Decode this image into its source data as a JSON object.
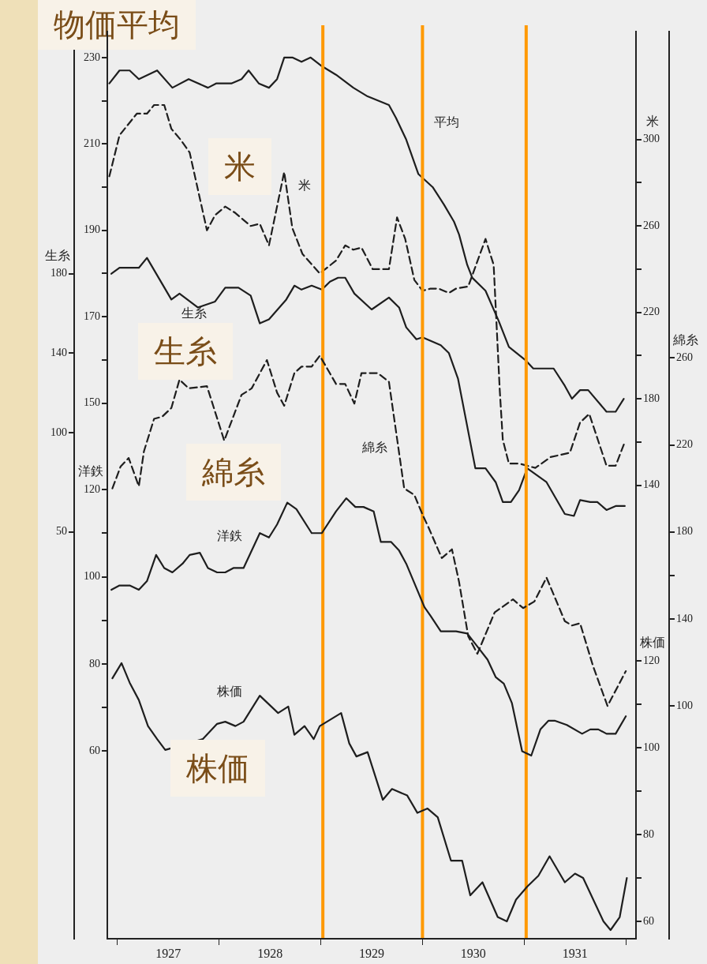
{
  "chart_data": [
    {
      "type": "line",
      "title": "物価平均",
      "annotations": [
        "米",
        "生糸"
      ],
      "xlim": [
        1926.9,
        1932.1
      ],
      "xticks": [
        {
          "value": 1927,
          "label": null
        },
        {
          "value": 1927.5,
          "label": "1927"
        },
        {
          "value": 1928,
          "label": null
        },
        {
          "value": 1928.5,
          "label": "1928"
        },
        {
          "value": 1929,
          "label": null
        },
        {
          "value": 1929.5,
          "label": "1929"
        },
        {
          "value": 1930,
          "label": null
        },
        {
          "value": 1930.5,
          "label": "1930"
        },
        {
          "value": 1931,
          "label": null
        },
        {
          "value": 1931.5,
          "label": "1931"
        },
        {
          "value": 1932,
          "label": null
        }
      ],
      "ylim": [
        26,
        236
      ],
      "yticks": [
        150,
        {
          "value": 160,
          "label": null
        },
        170,
        {
          "value": 180,
          "label": null
        },
        190,
        {
          "value": 200,
          "label": null
        },
        210,
        {
          "value": 220,
          "label": null
        },
        230
      ],
      "y2lim": [
        -70,
        350
      ],
      "y2label": "米",
      "y2ticks": [
        140,
        {
          "value": 160,
          "label": null
        },
        180,
        {
          "value": 200,
          "label": null
        },
        220,
        {
          "value": 240,
          "label": null
        },
        260,
        {
          "value": 280,
          "label": null
        },
        300
      ],
      "y3lim": [
        -155,
        302
      ],
      "y3label": "生糸",
      "y3ticks": [
        50,
        100,
        140,
        180
      ],
      "grid": false,
      "marker": "none",
      "ref_lines": [
        {
          "axis": "x",
          "value": 1929.02,
          "color": "#ff9900"
        },
        {
          "axis": "x",
          "value": 1930.0,
          "color": "#ff9900"
        },
        {
          "axis": "x",
          "value": 1931.02,
          "color": "#ff9900"
        }
      ],
      "series": [
        {
          "name": "平均",
          "color": "#1e1e1e",
          "axis": "y",
          "line_style": "solid",
          "x": [
            1926.92,
            1927.02,
            1927.12,
            1927.21,
            1927.39,
            1927.54,
            1927.7,
            1927.89,
            1927.97,
            1928.12,
            1928.22,
            1928.29,
            1928.39,
            1928.49,
            1928.57,
            1928.64,
            1928.72,
            1928.81,
            1928.9,
            1929.01,
            1929.15,
            1929.32,
            1929.46,
            1929.67,
            1929.74,
            1929.84,
            1929.96,
            1930.1,
            1930.21,
            1930.31,
            1930.36,
            1930.44,
            1930.49,
            1930.62,
            1930.75,
            1930.85,
            1931.01,
            1931.09,
            1931.29,
            1931.4,
            1931.47,
            1931.55,
            1931.63,
            1931.81,
            1931.9,
            1931.98
          ],
          "values": [
            224,
            227,
            227,
            225,
            227,
            223,
            225,
            223,
            224,
            224,
            225,
            227,
            224,
            223,
            225,
            230,
            230,
            229,
            230,
            228,
            226,
            223,
            221,
            219,
            216,
            211,
            203,
            200,
            196,
            192,
            189,
            182,
            179,
            176,
            169,
            163,
            160,
            158,
            158,
            154,
            151,
            153,
            153,
            148,
            148,
            151
          ]
        },
        {
          "name": "米",
          "color": "#1e1e1e",
          "axis": "y2",
          "line_style": "dashed",
          "x": [
            1926.92,
            1927.02,
            1927.19,
            1927.29,
            1927.36,
            1927.46,
            1927.53,
            1927.62,
            1927.71,
            1927.88,
            1927.96,
            1928.06,
            1928.16,
            1928.31,
            1928.4,
            1928.49,
            1928.64,
            1928.72,
            1928.82,
            1928.99,
            1929.15,
            1929.24,
            1929.32,
            1929.4,
            1929.51,
            1929.67,
            1929.75,
            1929.83,
            1929.92,
            1930.0,
            1930.08,
            1930.16,
            1930.26,
            1930.33,
            1930.45,
            1930.62,
            1930.7,
            1930.76,
            1930.79,
            1930.85,
            1930.95,
            1931.03,
            1931.11,
            1931.26,
            1931.45,
            1931.55,
            1931.64,
            1931.81,
            1931.9,
            1931.99
          ],
          "values": [
            283,
            302,
            312,
            312,
            316,
            316,
            305,
            300,
            294,
            258,
            265,
            269,
            266,
            260,
            261,
            251,
            285,
            259,
            247,
            238,
            244,
            251,
            249,
            250,
            240,
            240,
            264,
            254,
            235,
            230,
            231,
            231,
            229,
            231,
            232,
            254,
            242,
            184,
            161,
            150,
            150,
            149,
            148,
            153,
            155,
            169,
            173,
            149,
            149,
            160
          ]
        },
        {
          "name": "生糸",
          "color": "#1e1e1e",
          "axis": "y3",
          "line_style": "solid",
          "x": [
            1926.94,
            1927.02,
            1927.21,
            1927.29,
            1927.53,
            1927.61,
            1927.79,
            1927.96,
            1928.06,
            1928.19,
            1928.31,
            1928.4,
            1928.49,
            1928.66,
            1928.74,
            1928.81,
            1928.91,
            1929.01,
            1929.09,
            1929.17,
            1929.24,
            1929.33,
            1929.5,
            1929.67,
            1929.77,
            1929.84,
            1929.94,
            1930.0,
            1930.18,
            1930.26,
            1930.35,
            1930.52,
            1930.62,
            1930.72,
            1930.79,
            1930.87,
            1930.95,
            1931.03,
            1931.22,
            1931.4,
            1931.49,
            1931.55,
            1931.65,
            1931.72,
            1931.81,
            1931.9,
            1931.99
          ],
          "values": [
            180,
            183,
            183,
            188,
            167,
            170,
            163,
            166,
            173,
            173,
            169,
            155,
            157,
            167,
            174,
            172,
            174,
            172,
            176,
            178,
            178,
            170,
            162,
            168,
            163,
            153,
            147,
            148,
            144,
            140,
            127,
            82,
            82,
            75,
            65,
            65,
            71,
            82,
            75,
            59,
            58,
            66,
            65,
            65,
            61,
            63,
            63
          ]
        }
      ]
    },
    {
      "type": "line",
      "annotations": [
        "綿糸",
        "株価"
      ],
      "tick_labels": "y",
      "xlim": [
        1926.9,
        1932.1
      ],
      "xticks": [
        {
          "value": 1927,
          "label": null
        },
        {
          "value": 1928,
          "label": null
        },
        {
          "value": 1929,
          "label": null
        },
        {
          "value": 1930,
          "label": null
        },
        {
          "value": 1931,
          "label": null
        },
        {
          "value": 1932,
          "label": null
        }
      ],
      "ylim": [
        17,
        225
      ],
      "ylabel": "洋鉄",
      "yticks": [
        60,
        {
          "value": 70,
          "label": null
        },
        80,
        {
          "value": 90,
          "label": null
        },
        100,
        {
          "value": 110,
          "label": null
        },
        120
      ],
      "y2lim": [
        56,
        265
      ],
      "y2label": "株価",
      "y2ticks": [
        60,
        {
          "value": 70,
          "label": null
        },
        80,
        {
          "value": 90,
          "label": null
        },
        100,
        {
          "value": 110,
          "label": null
        },
        120
      ],
      "y3lim": [
        -7,
        410
      ],
      "y3label": "綿糸",
      "y3ticks": [
        100,
        140,
        {
          "value": 160,
          "label": null
        },
        180,
        220,
        260
      ],
      "grid": false,
      "marker": "none",
      "series": [
        {
          "name": "綿糸",
          "color": "#1e1e1e",
          "axis": "y3",
          "line_style": "dashed",
          "x": [
            1926.95,
            1927.03,
            1927.11,
            1927.21,
            1927.26,
            1927.36,
            1927.44,
            1927.53,
            1927.61,
            1927.7,
            1927.88,
            1928.05,
            1928.22,
            1928.32,
            1928.47,
            1928.57,
            1928.64,
            1928.74,
            1928.81,
            1928.91,
            1928.99,
            1929.15,
            1929.24,
            1929.33,
            1929.4,
            1929.56,
            1929.67,
            1929.82,
            1929.92,
            1930.0,
            1930.06,
            1930.19,
            1930.29,
            1930.36,
            1930.45,
            1930.54,
            1930.71,
            1930.89,
            1930.99,
            1931.1,
            1931.22,
            1931.4,
            1931.47,
            1931.55,
            1931.68,
            1931.82,
            1932.0
          ],
          "values": [
            200,
            210,
            214,
            201,
            217,
            232,
            233,
            237,
            250,
            246,
            247,
            222,
            243,
            246,
            259,
            244,
            238,
            253,
            256,
            256,
            261,
            248,
            248,
            239,
            253,
            253,
            249,
            200,
            197,
            188,
            182,
            168,
            172,
            157,
            132,
            124,
            143,
            149,
            145,
            148,
            159,
            139,
            137,
            138,
            118,
            100,
            116
          ]
        },
        {
          "name": "洋鉄",
          "color": "#1e1e1e",
          "axis": "y",
          "line_style": "solid",
          "x": [
            1926.94,
            1927.02,
            1927.12,
            1927.21,
            1927.29,
            1927.38,
            1927.46,
            1927.54,
            1927.64,
            1927.71,
            1927.81,
            1927.89,
            1927.98,
            1928.06,
            1928.14,
            1928.24,
            1928.4,
            1928.49,
            1928.57,
            1928.67,
            1928.76,
            1928.91,
            1929.01,
            1929.15,
            1929.25,
            1929.34,
            1929.42,
            1929.52,
            1929.59,
            1929.69,
            1929.77,
            1929.84,
            1930.02,
            1930.08,
            1930.18,
            1930.33,
            1930.44,
            1930.54,
            1930.64,
            1930.72,
            1930.8,
            1930.88,
            1930.98,
            1931.07,
            1931.16,
            1931.24,
            1931.3,
            1931.42,
            1931.57,
            1931.65,
            1931.73,
            1931.81,
            1931.9,
            1932.0
          ],
          "values": [
            97,
            98,
            98,
            97,
            99,
            105,
            102,
            101,
            103,
            105,
            105.5,
            102,
            101,
            101,
            102,
            102,
            110,
            109,
            112,
            117,
            115.5,
            110,
            110,
            115,
            118,
            116,
            116,
            115,
            108,
            108,
            106,
            103,
            93,
            91,
            87.5,
            87.5,
            87,
            84,
            81,
            77,
            75.5,
            71,
            60,
            59,
            65,
            67,
            67,
            66,
            64,
            65,
            65,
            64,
            64,
            68
          ]
        },
        {
          "name": "株価",
          "color": "#1e1e1e",
          "axis": "y2",
          "line_style": "solid",
          "x": [
            1926.95,
            1927.04,
            1927.12,
            1927.21,
            1927.3,
            1927.39,
            1927.47,
            1927.84,
            1927.98,
            1928.06,
            1928.16,
            1928.24,
            1928.4,
            1928.58,
            1928.68,
            1928.74,
            1928.84,
            1928.93,
            1928.99,
            1929.2,
            1929.28,
            1929.35,
            1929.46,
            1929.61,
            1929.7,
            1929.85,
            1929.95,
            1930.05,
            1930.15,
            1930.28,
            1930.39,
            1930.47,
            1930.59,
            1930.74,
            1930.83,
            1930.92,
            1931.03,
            1931.14,
            1931.25,
            1931.4,
            1931.5,
            1931.58,
            1931.78,
            1931.85,
            1931.94,
            1932.01
          ],
          "values": [
            116,
            119.5,
            115,
            111,
            105,
            102,
            99.5,
            102,
            105.5,
            106,
            105,
            106,
            112,
            108,
            109.5,
            103,
            105,
            102,
            105,
            108,
            101,
            98,
            99,
            88,
            90.5,
            89,
            85,
            86,
            84,
            74,
            74,
            66,
            69,
            61,
            60,
            65,
            68,
            70.5,
            75,
            69,
            71,
            70,
            60,
            58,
            61,
            70
          ]
        }
      ]
    }
  ]
}
